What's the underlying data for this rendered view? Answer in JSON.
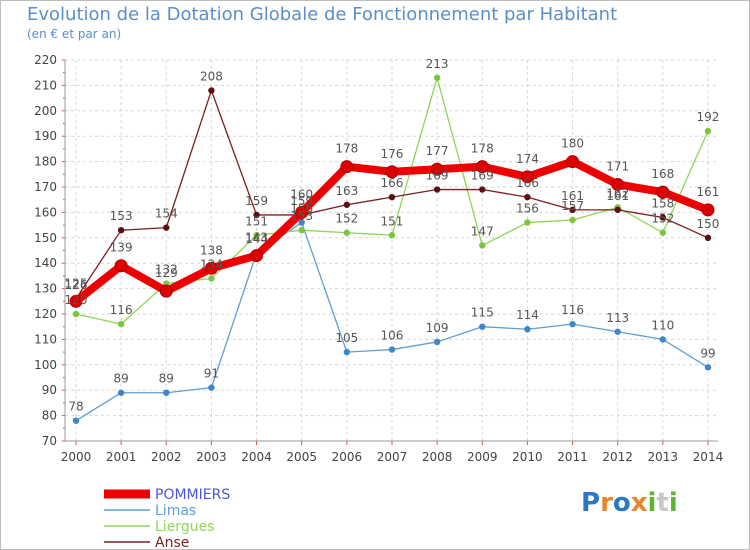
{
  "title": "Evolution de la Dotation Globale de Fonctionnement par Habitant",
  "subtitle": "(en € et par an)",
  "logo": {
    "text": "Proxiti",
    "colors": [
      "#2d78c4",
      "#e8862a",
      "#5cb52e",
      "#c9c9c9"
    ]
  },
  "chart_data": {
    "type": "line",
    "title": "Evolution de la Dotation Globale de Fonctionnement par Habitant",
    "subtitle": "(en € et par an)",
    "xlabel": "",
    "ylabel": "",
    "x": [
      "2000",
      "2001",
      "2002",
      "2003",
      "2004",
      "2005",
      "2006",
      "2007",
      "2008",
      "2009",
      "2010",
      "2011",
      "2012",
      "2013",
      "2014"
    ],
    "y_ticks": [
      "70",
      "80",
      "90",
      "100",
      "110",
      "120",
      "130",
      "140",
      "150",
      "160",
      "170",
      "180",
      "190",
      "200",
      "210",
      "220"
    ],
    "ylim": [
      70,
      220
    ],
    "grid": true,
    "legend_position": "bottom-left",
    "series": [
      {
        "name": "POMMIERS",
        "color": "#ee0000",
        "marker_color": "#dd0000",
        "legend_text_color": "#4a56e0",
        "values": [
          125,
          139,
          129,
          138,
          143,
          160,
          178,
          176,
          177,
          178,
          174,
          180,
          171,
          168,
          161
        ],
        "labels": [
          "125",
          "139",
          "129",
          "138",
          "143",
          "160",
          "178",
          "176",
          "177",
          "178",
          "174",
          "180",
          "171",
          "168",
          "161"
        ]
      },
      {
        "name": "Limas",
        "color": "#5d9ed4",
        "marker_color": "#3f86c6",
        "legend_text_color": "#5d9ed4",
        "values": [
          78,
          89,
          89,
          91,
          144,
          156,
          105,
          106,
          109,
          115,
          114,
          116,
          113,
          110,
          99
        ],
        "labels": [
          "78",
          "89",
          "89",
          "91",
          "144",
          "156",
          "105",
          "106",
          "109",
          "115",
          "114",
          "116",
          "113",
          "110",
          "99"
        ]
      },
      {
        "name": "Liergues",
        "color": "#8ed654",
        "marker_color": "#7cc43f",
        "legend_text_color": "#8ed654",
        "values": [
          120,
          116,
          132,
          134,
          151,
          153,
          152,
          151,
          213,
          147,
          156,
          157,
          162,
          152,
          192
        ],
        "labels": [
          "120",
          "116",
          "132",
          "134",
          "151",
          "153",
          "152",
          "151",
          "213",
          "147",
          "156",
          "157",
          "162",
          "152",
          "192"
        ]
      },
      {
        "name": "Anse",
        "color": "#7a1f1f",
        "marker_color": "#5a1010",
        "legend_text_color": "#7a1f1f",
        "values": [
          126,
          153,
          154,
          208,
          159,
          159,
          163,
          166,
          169,
          169,
          166,
          161,
          161,
          158,
          150
        ],
        "labels": [
          "126",
          "153",
          "154",
          "208",
          "159",
          "159",
          "163",
          "166",
          "169",
          "169",
          "166",
          "161",
          "161",
          "158",
          "150"
        ]
      }
    ]
  }
}
